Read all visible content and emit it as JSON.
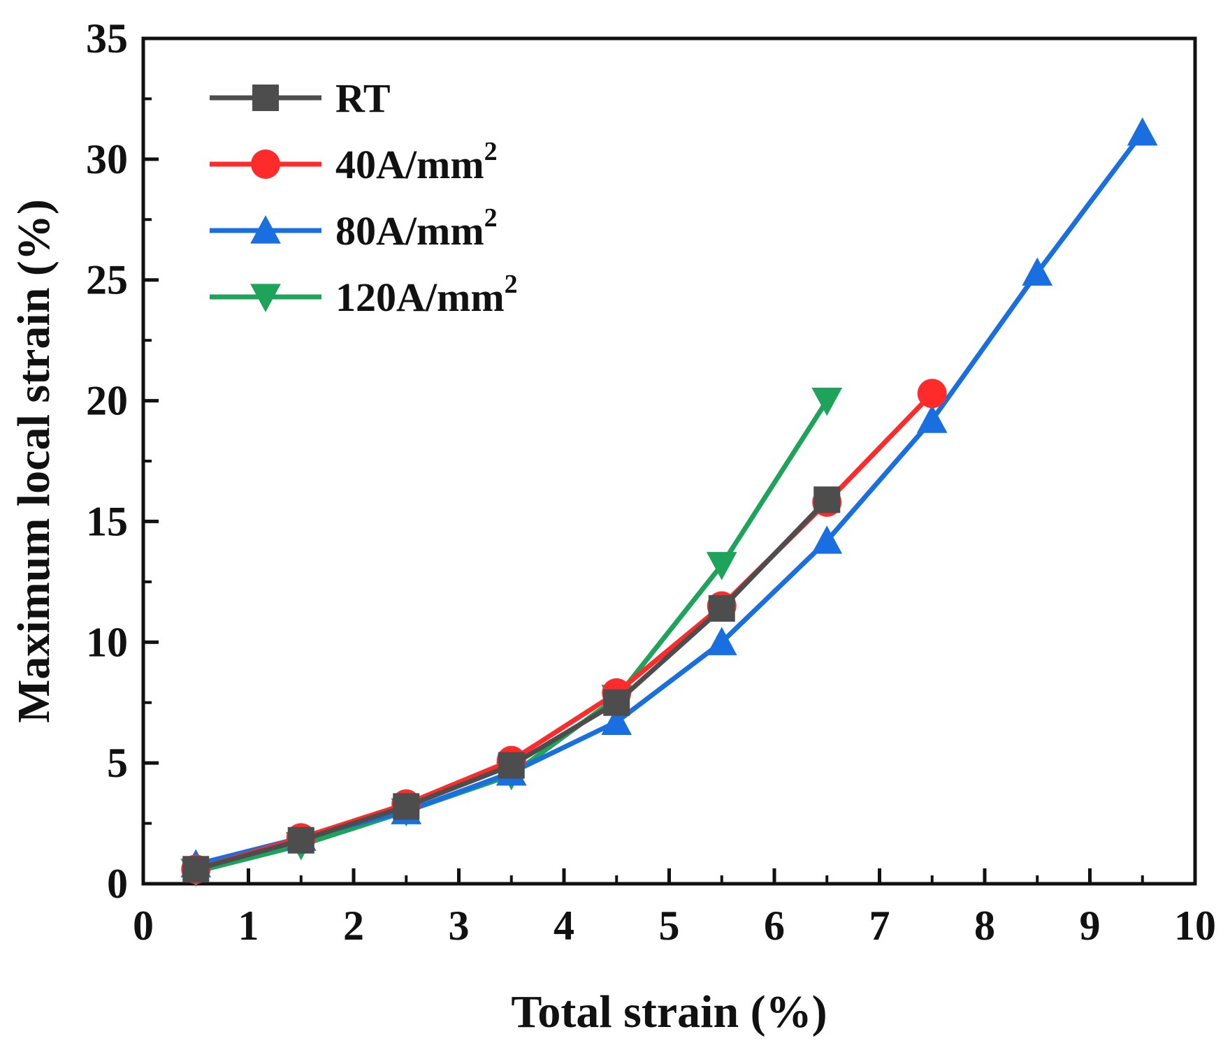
{
  "chart_data": {
    "type": "line",
    "title": "",
    "xlabel": "Total strain (%)",
    "ylabel": "Maximum local strain (%)",
    "xlim": [
      0,
      10
    ],
    "ylim": [
      0,
      35
    ],
    "xticks": [
      "0",
      "1",
      "2",
      "3",
      "4",
      "5",
      "6",
      "7",
      "8",
      "9",
      "10"
    ],
    "yticks": [
      "0",
      "5",
      "10",
      "15",
      "20",
      "25",
      "30",
      "35"
    ],
    "grid": false,
    "legend_position": "top-left",
    "series": [
      {
        "name": "RT",
        "legend_text": "RT",
        "legend_sup": "",
        "color": "#4d4d4d",
        "marker": "square",
        "x": [
          0.5,
          1.5,
          2.5,
          3.5,
          4.5,
          5.5,
          6.5
        ],
        "y": [
          0.6,
          1.8,
          3.2,
          4.9,
          7.5,
          11.4,
          15.9
        ]
      },
      {
        "name": "40A/mm2",
        "legend_text": "40A/mm",
        "legend_sup": "2",
        "color": "#ff2a2a",
        "marker": "circle",
        "x": [
          0.5,
          1.5,
          2.5,
          3.5,
          4.5,
          5.5,
          6.5,
          7.5
        ],
        "y": [
          0.6,
          1.9,
          3.3,
          5.1,
          7.9,
          11.5,
          15.8,
          20.3
        ]
      },
      {
        "name": "80A/mm2",
        "legend_text": "80A/mm",
        "legend_sup": "2",
        "color": "#1a6fe0",
        "marker": "triangle-up",
        "x": [
          0.5,
          1.5,
          2.5,
          3.5,
          4.5,
          5.5,
          6.5,
          7.5,
          8.5,
          9.5
        ],
        "y": [
          0.8,
          1.9,
          3.0,
          4.6,
          6.7,
          10.0,
          14.2,
          19.2,
          25.3,
          31.1
        ]
      },
      {
        "name": "120A/mm2",
        "legend_text": "120A/mm",
        "legend_sup": "2",
        "color": "#1ea35a",
        "marker": "triangle-down",
        "x": [
          0.5,
          1.5,
          2.5,
          3.5,
          4.5,
          5.5,
          6.5
        ],
        "y": [
          0.5,
          1.6,
          3.0,
          4.5,
          7.7,
          13.2,
          20.0
        ]
      }
    ]
  }
}
